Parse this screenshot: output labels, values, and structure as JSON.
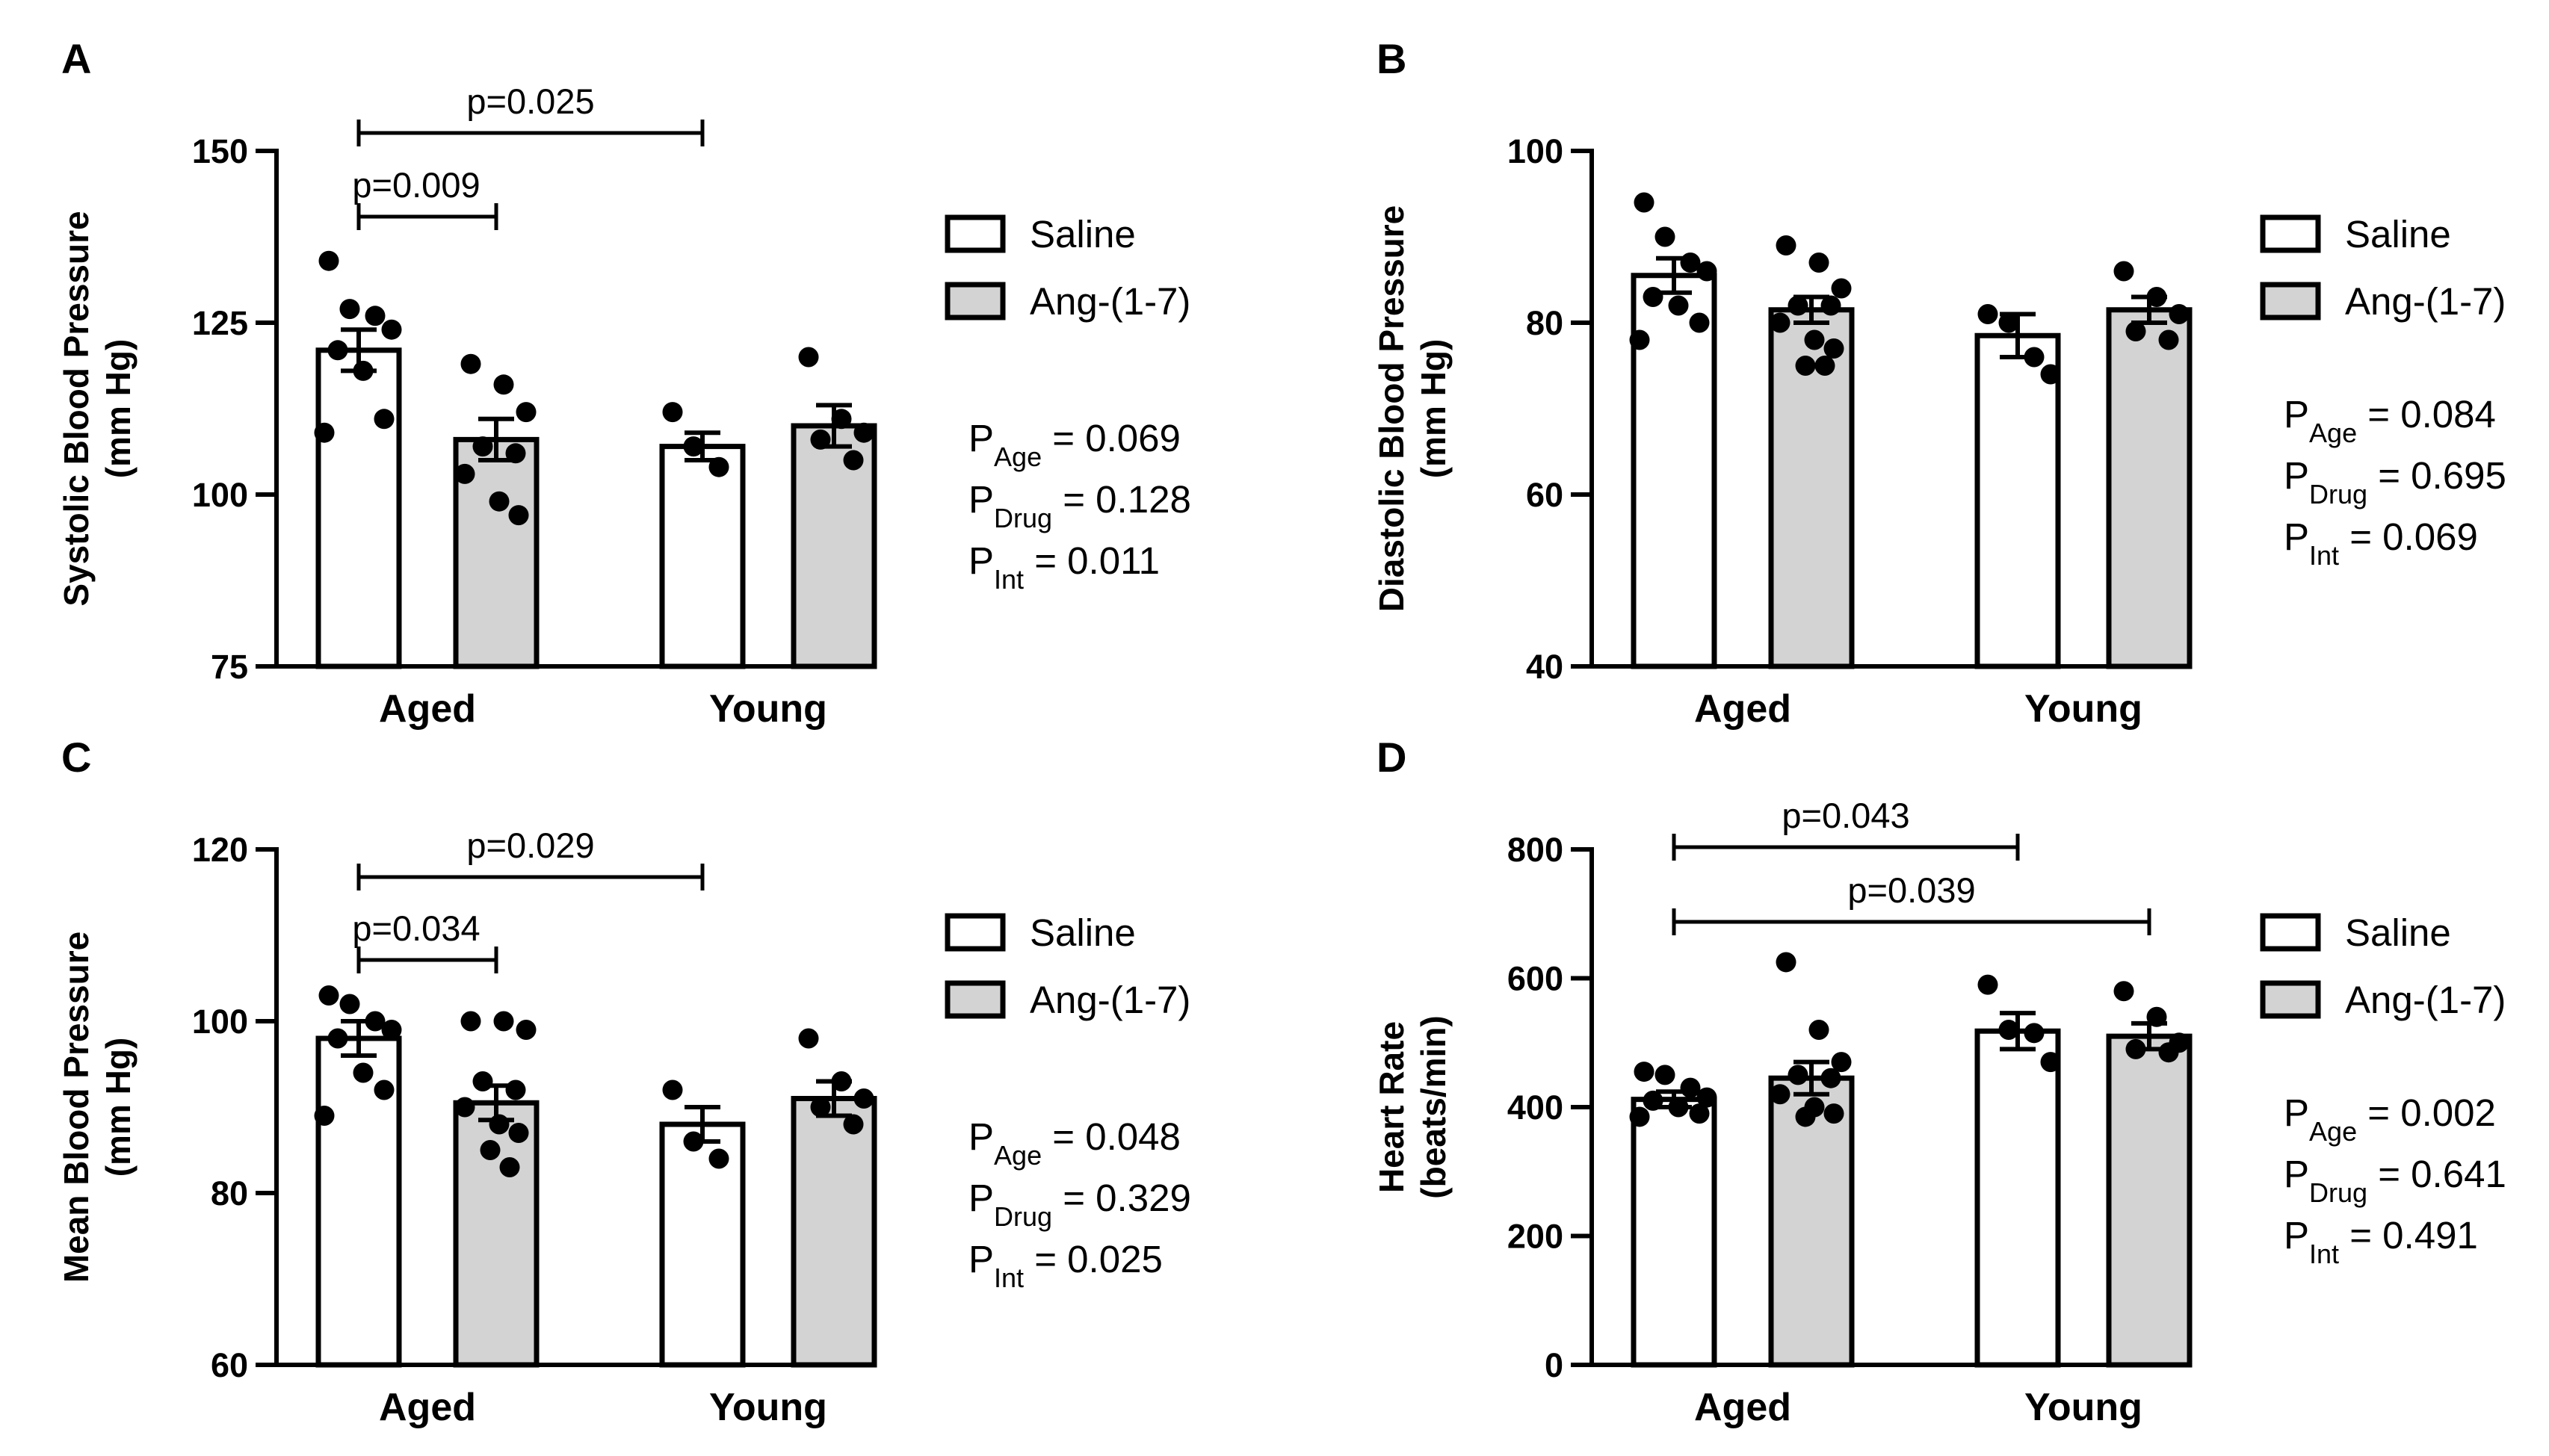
{
  "colors": {
    "saline": "#ffffff",
    "ang": "#d3d3d3",
    "ink": "#000000"
  },
  "chart_data": [
    {
      "type": "bar",
      "panel": "A",
      "ylabel_line1": "Systolic Blood Pressure",
      "ylabel_line2": "(mm Hg)",
      "ylim": [
        75,
        150
      ],
      "yticks": [
        75,
        100,
        125,
        150
      ],
      "categories": [
        "Aged",
        "Young"
      ],
      "series": [
        {
          "name": "Saline",
          "values": [
            121,
            107
          ],
          "sem": [
            3,
            2
          ],
          "points": [
            [
              134,
              127,
              126,
              124,
              121,
              118,
              111,
              109
            ],
            [
              112,
              107,
              104
            ]
          ]
        },
        {
          "name": "Ang-(1-7)",
          "values": [
            108,
            110
          ],
          "sem": [
            3,
            3
          ],
          "points": [
            [
              119,
              116,
              112,
              107,
              106,
              103,
              99,
              97
            ],
            [
              120,
              111,
              109,
              108,
              105
            ]
          ]
        }
      ],
      "legend": [
        "Saline",
        "Ang-(1-7)"
      ],
      "stats": [
        {
          "main": "P",
          "sub": "Age",
          "rest": " = 0.069"
        },
        {
          "main": "P",
          "sub": "Drug",
          "rest": " = 0.128"
        },
        {
          "main": "P",
          "sub": "Int",
          "rest": " = 0.011"
        }
      ],
      "comparisons": [
        {
          "label": "p=0.009",
          "from": "Aged Saline",
          "to": "Aged Ang-(1-7)"
        },
        {
          "label": "p=0.025",
          "from": "Aged Saline",
          "to": "Young Saline"
        }
      ]
    },
    {
      "type": "bar",
      "panel": "B",
      "ylabel_line1": "Diastolic Blood Pressure",
      "ylabel_line2": "(mm Hg)",
      "ylim": [
        40,
        100
      ],
      "yticks": [
        40,
        60,
        80,
        100
      ],
      "categories": [
        "Aged",
        "Young"
      ],
      "series": [
        {
          "name": "Saline",
          "values": [
            85.5,
            78.5
          ],
          "sem": [
            2,
            2.5
          ],
          "points": [
            [
              94,
              90,
              87,
              86,
              83,
              82,
              80,
              78
            ],
            [
              81,
              80,
              76,
              74
            ]
          ]
        },
        {
          "name": "Ang-(1-7)",
          "values": [
            81.5,
            81.5
          ],
          "sem": [
            1.5,
            1.5
          ],
          "points": [
            [
              89,
              87,
              84,
              82,
              82,
              80,
              78,
              77,
              75,
              75
            ],
            [
              86,
              83,
              81,
              79,
              78
            ]
          ]
        }
      ],
      "legend": [
        "Saline",
        "Ang-(1-7)"
      ],
      "stats": [
        {
          "main": "P",
          "sub": "Age",
          "rest": " = 0.084"
        },
        {
          "main": "P",
          "sub": "Drug",
          "rest": " = 0.695"
        },
        {
          "main": "P",
          "sub": "Int",
          "rest": " = 0.069"
        }
      ],
      "comparisons": []
    },
    {
      "type": "bar",
      "panel": "C",
      "ylabel_line1": "Mean Blood Pressure",
      "ylabel_line2": "(mm Hg)",
      "ylim": [
        60,
        120
      ],
      "yticks": [
        60,
        80,
        100,
        120
      ],
      "categories": [
        "Aged",
        "Young"
      ],
      "series": [
        {
          "name": "Saline",
          "values": [
            98,
            88
          ],
          "sem": [
            2,
            2
          ],
          "points": [
            [
              103,
              102,
              100,
              99,
              98,
              94,
              92,
              89
            ],
            [
              92,
              86,
              84
            ]
          ]
        },
        {
          "name": "Ang-(1-7)",
          "values": [
            90.5,
            91
          ],
          "sem": [
            2,
            2
          ],
          "points": [
            [
              100,
              100,
              99,
              93,
              92,
              90,
              88,
              87,
              85,
              83
            ],
            [
              98,
              93,
              91,
              90,
              88
            ]
          ]
        }
      ],
      "legend": [
        "Saline",
        "Ang-(1-7)"
      ],
      "stats": [
        {
          "main": "P",
          "sub": "Age",
          "rest": " = 0.048"
        },
        {
          "main": "P",
          "sub": "Drug",
          "rest": " = 0.329"
        },
        {
          "main": "P",
          "sub": "Int",
          "rest": " = 0.025"
        }
      ],
      "comparisons": [
        {
          "label": "p=0.034",
          "from": "Aged Saline",
          "to": "Aged Ang-(1-7)"
        },
        {
          "label": "p=0.029",
          "from": "Aged Saline",
          "to": "Young Saline"
        }
      ]
    },
    {
      "type": "bar",
      "panel": "D",
      "ylabel_line1": "Heart Rate",
      "ylabel_line2": "(beats/min)",
      "ylim": [
        0,
        800
      ],
      "yticks": [
        0,
        200,
        400,
        600,
        800
      ],
      "categories": [
        "Aged",
        "Young"
      ],
      "series": [
        {
          "name": "Saline",
          "values": [
            412,
            518
          ],
          "sem": [
            12,
            28
          ],
          "points": [
            [
              455,
              450,
              430,
              415,
              410,
              400,
              390,
              385
            ],
            [
              590,
              520,
              515,
              470
            ]
          ]
        },
        {
          "name": "Ang-(1-7)",
          "values": [
            445,
            510
          ],
          "sem": [
            25,
            20
          ],
          "points": [
            [
              625,
              520,
              470,
              450,
              445,
              420,
              400,
              390,
              385
            ],
            [
              580,
              540,
              500,
              490,
              485
            ]
          ]
        }
      ],
      "legend": [
        "Saline",
        "Ang-(1-7)"
      ],
      "stats": [
        {
          "main": "P",
          "sub": "Age",
          "rest": " = 0.002"
        },
        {
          "main": "P",
          "sub": "Drug",
          "rest": " = 0.641"
        },
        {
          "main": "P",
          "sub": "Int",
          "rest": " = 0.491"
        }
      ],
      "comparisons": [
        {
          "label": "p=0.043",
          "from": "Aged Saline",
          "to": "Young Saline"
        },
        {
          "label": "p=0.039",
          "from": "Aged Saline",
          "to": "Young Ang-(1-7)"
        }
      ]
    }
  ]
}
